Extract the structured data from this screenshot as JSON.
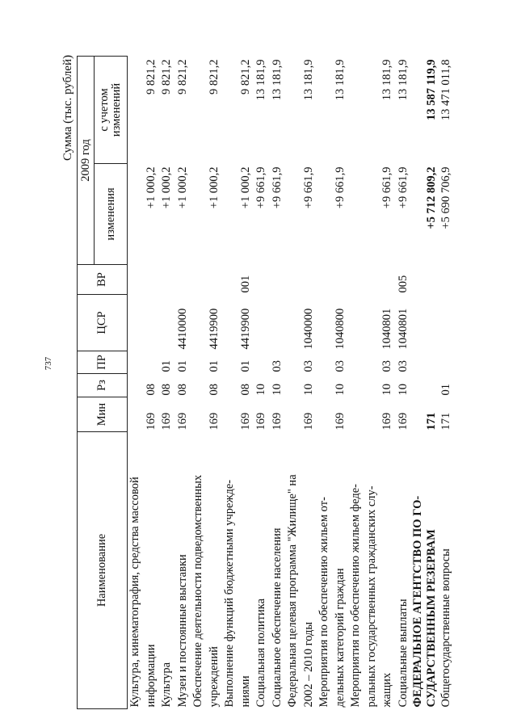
{
  "page_number": "737",
  "unit_label": "Сумма (тыс. рублей)",
  "header": {
    "name": "Наименование",
    "min": "Мин",
    "rz": "Рз",
    "pr": "ПР",
    "csr": "ЦСР",
    "vr": "ВР",
    "year": "2009 год",
    "change": "изменения",
    "total": "с учетом изменений"
  },
  "rows": [
    {
      "name_lines": [
        "Культура, кинематография, средства массовой",
        "информации"
      ],
      "min": "169",
      "rz": "08",
      "pr": "",
      "csr": "",
      "vr": "",
      "change": "+1 000,2",
      "total": "9 821,2"
    },
    {
      "name_lines": [
        "Культура"
      ],
      "min": "169",
      "rz": "08",
      "pr": "01",
      "csr": "",
      "vr": "",
      "change": "+1 000,2",
      "total": "9 821,2"
    },
    {
      "name_lines": [
        "Музеи и постоянные выставки"
      ],
      "min": "169",
      "rz": "08",
      "pr": "01",
      "csr": "4410000",
      "vr": "",
      "change": "+1 000,2",
      "total": "9 821,2"
    },
    {
      "name_lines": [
        "Обеспечение деятельности подведомственных",
        "учреждений"
      ],
      "min": "169",
      "rz": "08",
      "pr": "01",
      "csr": "4419900",
      "vr": "",
      "change": "+1 000,2",
      "total": "9 821,2"
    },
    {
      "name_lines": [
        "Выполнение функций бюджетными учрежде-",
        "ниями"
      ],
      "min": "169",
      "rz": "08",
      "pr": "01",
      "csr": "4419900",
      "vr": "001",
      "change": "+1 000,2",
      "total": "9 821,2"
    },
    {
      "name_lines": [
        "Социальная политика"
      ],
      "min": "169",
      "rz": "10",
      "pr": "",
      "csr": "",
      "vr": "",
      "change": "+9 661,9",
      "total": "13 181,9"
    },
    {
      "name_lines": [
        "Социальное обеспечение населения"
      ],
      "min": "169",
      "rz": "10",
      "pr": "03",
      "csr": "",
      "vr": "",
      "change": "+9 661,9",
      "total": "13 181,9"
    },
    {
      "name_lines": [
        "Федеральная целевая программа \"Жилище\" на",
        "2002 – 2010 годы"
      ],
      "min": "169",
      "rz": "10",
      "pr": "03",
      "csr": "1040000",
      "vr": "",
      "change": "+9 661,9",
      "total": "13 181,9"
    },
    {
      "name_lines": [
        "Мероприятия по обеспечению жильем от-",
        "дельных категорий граждан"
      ],
      "min": "169",
      "rz": "10",
      "pr": "03",
      "csr": "1040800",
      "vr": "",
      "change": "+9 661,9",
      "total": "13 181,9"
    },
    {
      "name_lines": [
        "Мероприятия по обеспечению жильем феде-",
        "ральных государственных гражданских слу-",
        "жащих"
      ],
      "min": "169",
      "rz": "10",
      "pr": "03",
      "csr": "1040801",
      "vr": "",
      "change": "+9 661,9",
      "total": "13 181,9"
    },
    {
      "name_lines": [
        "Социальные выплаты"
      ],
      "min": "169",
      "rz": "10",
      "pr": "03",
      "csr": "1040801",
      "vr": "005",
      "change": "+9 661,9",
      "total": "13 181,9"
    },
    {
      "name_lines": [
        "ФЕДЕРАЛЬНОЕ АГЕНТСТВО ПО ГО-",
        "СУДАРСТВЕННЫМ РЕЗЕРВАМ"
      ],
      "min": "171",
      "rz": "",
      "pr": "",
      "csr": "",
      "vr": "",
      "change": "+5 712 809,2",
      "total": "13 587 119,9",
      "bold": true
    },
    {
      "name_lines": [
        "Общегосударственные вопросы"
      ],
      "min": "171",
      "rz": "01",
      "pr": "",
      "csr": "",
      "vr": "",
      "change": "+5 690 706,9",
      "total": "13 471 011,8"
    }
  ]
}
